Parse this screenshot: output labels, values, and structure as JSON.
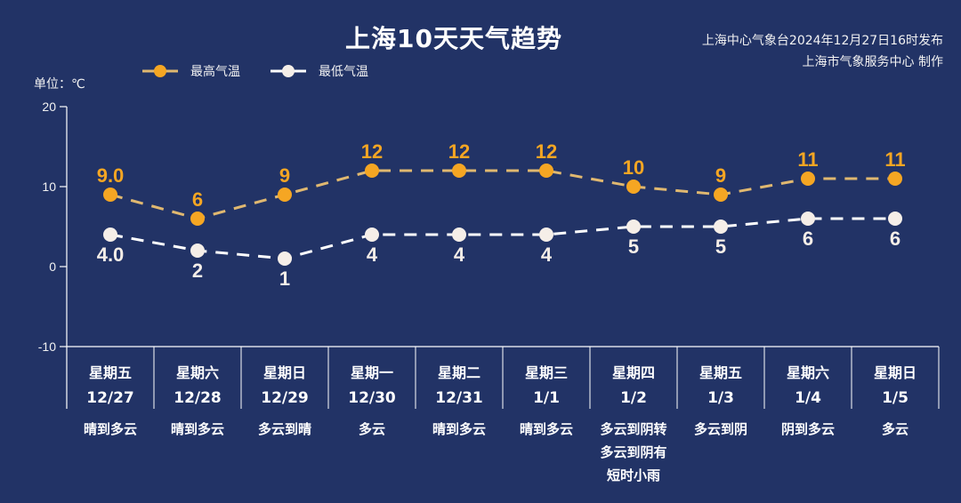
{
  "header": {
    "title": "上海10天天气趋势",
    "publisher_line1": "上海中心气象台2024年12月27日16时发布",
    "publisher_line2": "上海市气象服务中心 制作",
    "unit": "单位：℃"
  },
  "legend": [
    {
      "label": "最高气温",
      "color": "#F5A623"
    },
    {
      "label": "最低气温",
      "color": "#F5EEE8"
    }
  ],
  "colors": {
    "background": "#223366",
    "high": "#F5A623",
    "high_line": "#E0B870",
    "low": "#F5EEE8"
  },
  "chart_data": {
    "type": "line",
    "title": "上海10天天气趋势",
    "ylabel": "单位：℃",
    "ylim": [
      -10,
      20
    ],
    "yticks": [
      20,
      10,
      0,
      -10
    ],
    "categories": [
      "12/27",
      "12/28",
      "12/29",
      "12/30",
      "12/31",
      "1/1",
      "1/2",
      "1/3",
      "1/4",
      "1/5"
    ],
    "weekdays": [
      "星期五",
      "星期六",
      "星期日",
      "星期一",
      "星期二",
      "星期三",
      "星期四",
      "星期五",
      "星期六",
      "星期日"
    ],
    "weather": [
      "晴到多云",
      "晴到多云",
      "多云到晴",
      "多云",
      "晴到多云",
      "晴到多云",
      "多云到阴转\n多云到阴有\n短时小雨",
      "多云到阴",
      "阴到多云",
      "多云"
    ],
    "series": [
      {
        "name": "最高气温",
        "values": [
          9,
          6,
          9,
          12,
          12,
          12,
          10,
          9,
          11,
          11
        ],
        "labels": [
          "9.0",
          "6",
          "9",
          "12",
          "12",
          "12",
          "10",
          "9",
          "11",
          "11"
        ]
      },
      {
        "name": "最低气温",
        "values": [
          4,
          2,
          1,
          4,
          4,
          4,
          5,
          5,
          6,
          6
        ],
        "labels": [
          "4.0",
          "2",
          "1",
          "4",
          "4",
          "4",
          "5",
          "5",
          "6",
          "6"
        ]
      }
    ],
    "legend_position": "top",
    "grid": false
  }
}
